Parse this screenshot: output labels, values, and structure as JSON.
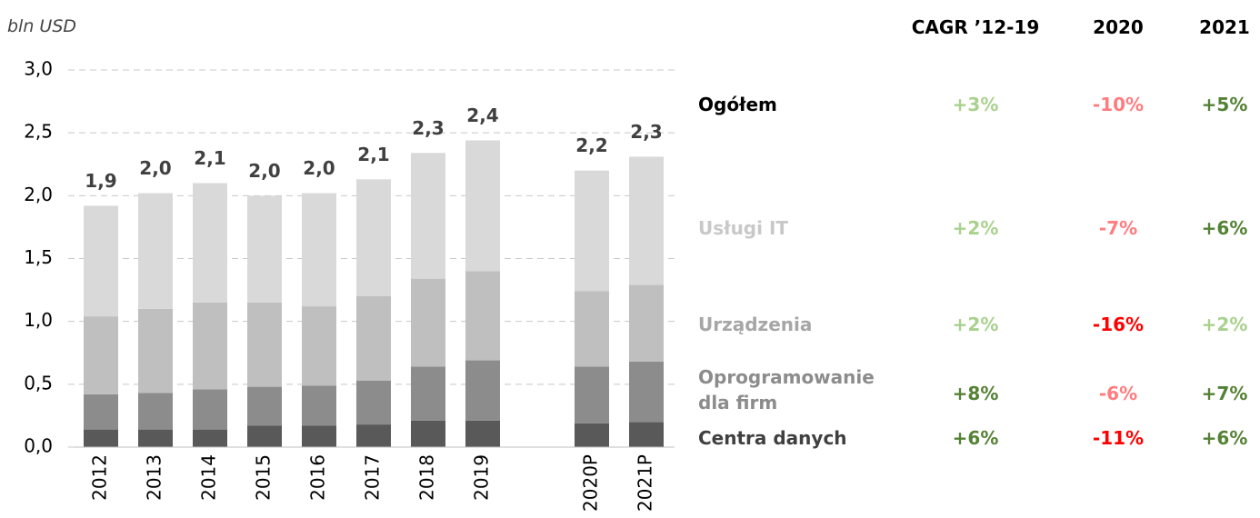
{
  "chart_data": {
    "type": "stacked_bar",
    "unit_label": "bln USD",
    "categories": [
      "2012",
      "2013",
      "2014",
      "2015",
      "2016",
      "2017",
      "2018",
      "2019",
      null,
      "2020P",
      "2021P"
    ],
    "series": [
      {
        "color": "#595959",
        "values": [
          0.14,
          0.14,
          0.14,
          0.17,
          0.17,
          0.18,
          0.21,
          0.21,
          null,
          0.19,
          0.2
        ]
      },
      {
        "color": "#8c8c8c",
        "values": [
          0.28,
          0.29,
          0.32,
          0.31,
          0.32,
          0.35,
          0.43,
          0.48,
          null,
          0.45,
          0.48
        ]
      },
      {
        "color": "#bfbfbf",
        "values": [
          0.62,
          0.67,
          0.69,
          0.67,
          0.63,
          0.67,
          0.7,
          0.71,
          null,
          0.6,
          0.61
        ]
      },
      {
        "color": "#d9d9d9",
        "values": [
          0.88,
          0.92,
          0.95,
          0.85,
          0.9,
          0.93,
          1.0,
          1.04,
          null,
          0.96,
          1.02
        ]
      }
    ],
    "totals": [
      1.92,
      2.02,
      2.1,
      2.0,
      2.02,
      2.13,
      2.34,
      2.44,
      null,
      2.2,
      2.31
    ],
    "total_labels": [
      "1,9",
      "2,0",
      "2,1",
      "2,0",
      "2,0",
      "2,1",
      "2,3",
      "2,4",
      null,
      "2,2",
      "2,3"
    ],
    "ylim": [
      0,
      3.0
    ],
    "yticks": [
      {
        "value": 0,
        "label": "0,0"
      },
      {
        "value": 0.5,
        "label": "0,5"
      },
      {
        "value": 1.0,
        "label": "1,0"
      },
      {
        "value": 1.5,
        "label": "1,5"
      },
      {
        "value": 2.0,
        "label": "2,0"
      },
      {
        "value": 2.5,
        "label": "2,5"
      },
      {
        "value": 3.0,
        "label": "3,0"
      }
    ],
    "grid": true,
    "table": {
      "columns": [
        "CAGR ’12-19",
        "2020",
        "2021"
      ],
      "rows": [
        {
          "label": "Ogółem",
          "label_color": "#000000",
          "cells": [
            {
              "text": "+3%",
              "color": "#a9d18e"
            },
            {
              "text": "-10%",
              "color": "#ff7c80"
            },
            {
              "text": "+5%",
              "color": "#548235"
            }
          ]
        },
        {
          "label": "Usługi IT",
          "label_color": "#c8c8c8",
          "cells": [
            {
              "text": "+2%",
              "color": "#a9d18e"
            },
            {
              "text": "-7%",
              "color": "#ff7c80"
            },
            {
              "text": "+6%",
              "color": "#548235"
            }
          ]
        },
        {
          "label": "Urządzenia",
          "label_color": "#a6a6a6",
          "cells": [
            {
              "text": "+2%",
              "color": "#a9d18e"
            },
            {
              "text": "-16%",
              "color": "#ff0000"
            },
            {
              "text": "+2%",
              "color": "#a9d18e"
            }
          ]
        },
        {
          "label": "Oprogramowanie dla firm",
          "label_color": "#8c8c8c",
          "cells": [
            {
              "text": "+8%",
              "color": "#548235"
            },
            {
              "text": "-6%",
              "color": "#ff7c80"
            },
            {
              "text": "+7%",
              "color": "#548235"
            }
          ]
        },
        {
          "label": "Centra danych",
          "label_color": "#404040",
          "cells": [
            {
              "text": "+6%",
              "color": "#548235"
            },
            {
              "text": "-11%",
              "color": "#ff0000"
            },
            {
              "text": "+6%",
              "color": "#548235"
            }
          ]
        }
      ]
    }
  }
}
